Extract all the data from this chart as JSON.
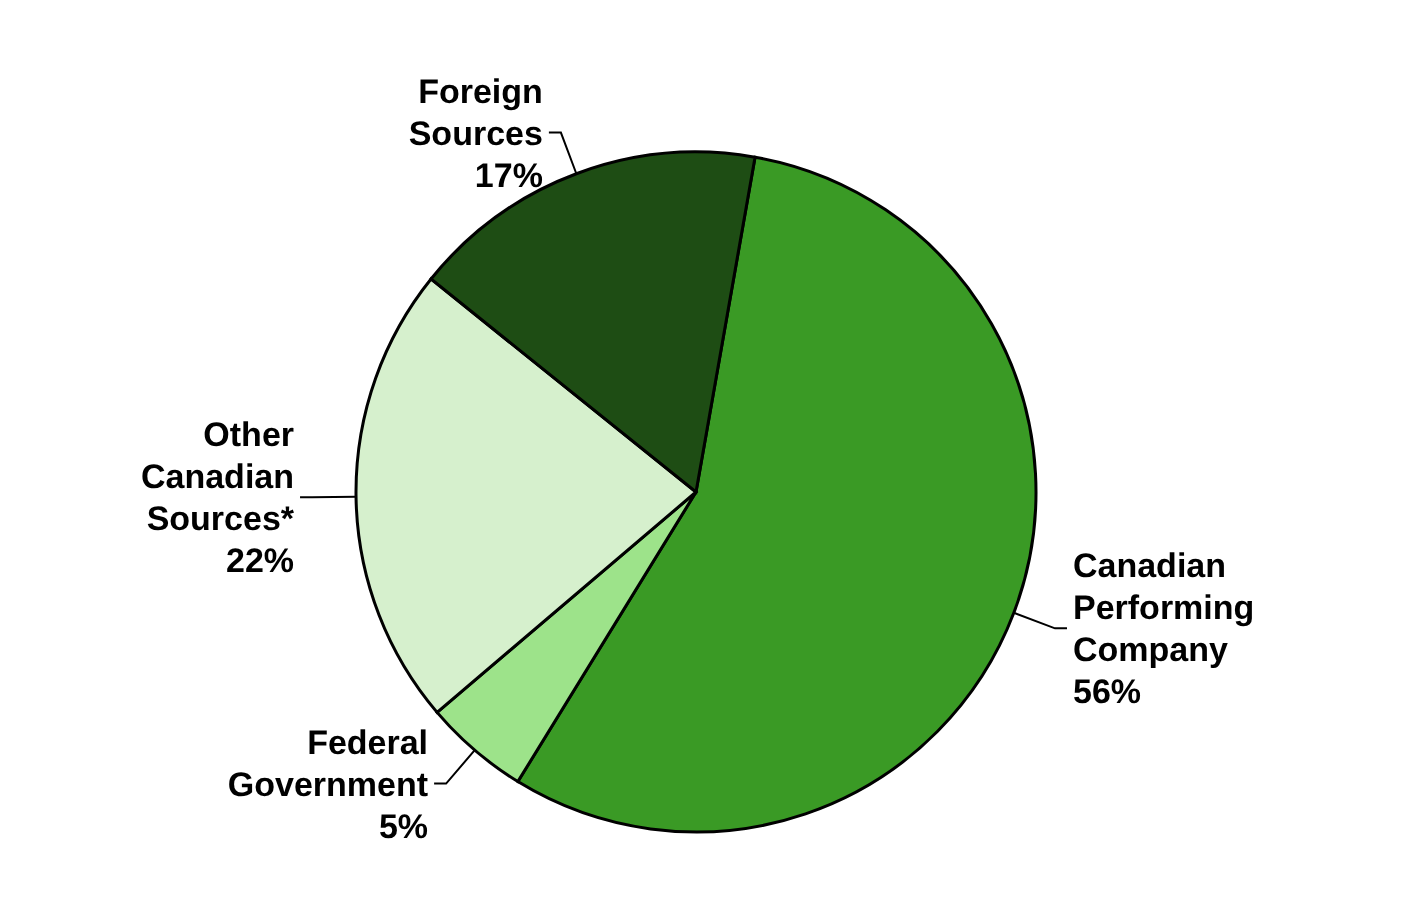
{
  "chart_data": {
    "type": "pie",
    "categories": [
      "Canadian Performing Company",
      "Federal Government",
      "Other Canadian Sources*",
      "Foreign Sources"
    ],
    "values": [
      56,
      5,
      22,
      17
    ],
    "value_labels": [
      "56%",
      "5%",
      "22%",
      "17%"
    ],
    "colors": [
      "#3a9a25",
      "#9de38a",
      "#d6f0cd",
      "#1e4d14"
    ]
  }
}
